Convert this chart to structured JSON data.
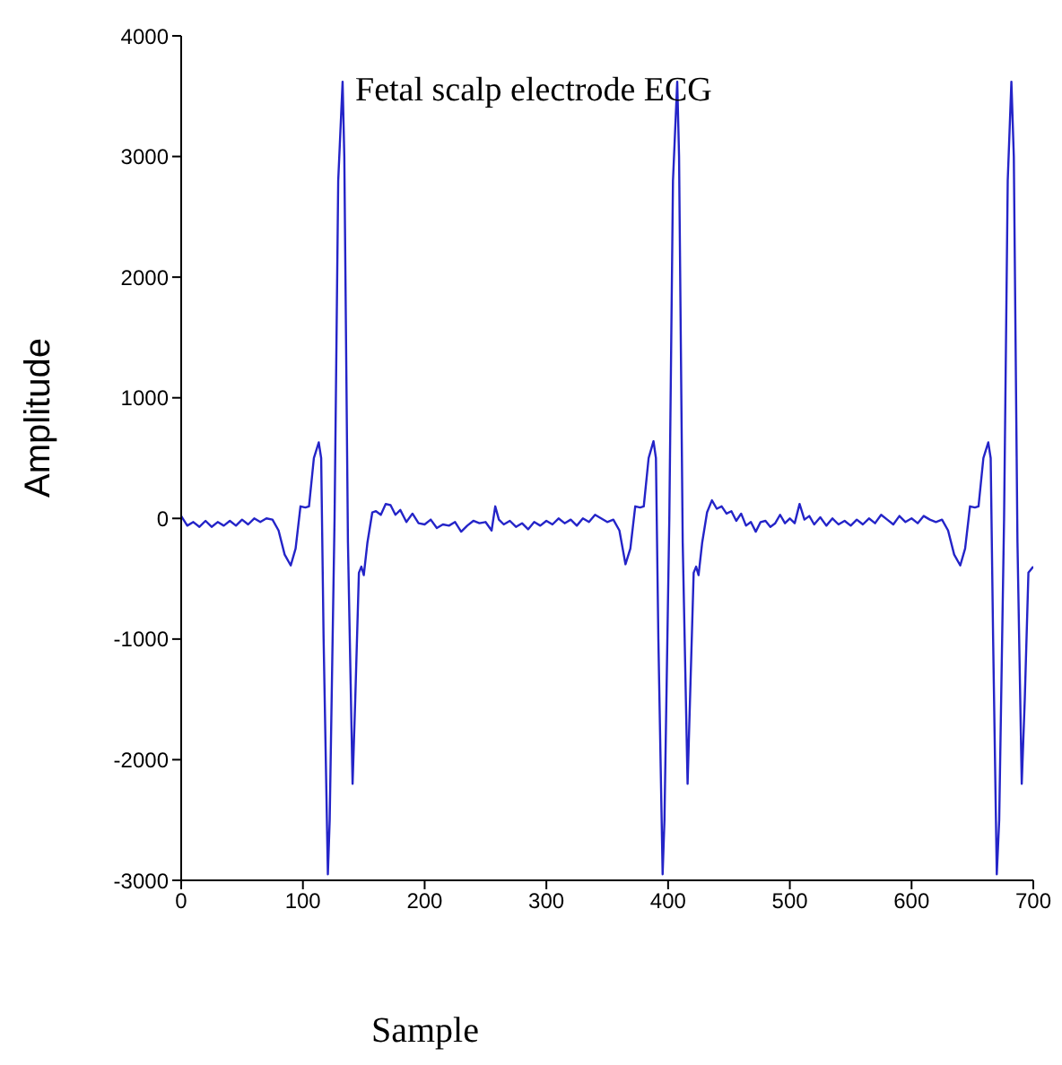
{
  "chart_data": {
    "type": "line",
    "title": "Fetal scalp electrode ECG",
    "xlabel": "Sample",
    "ylabel": "Amplitude",
    "xlim": [
      0,
      700
    ],
    "xticks": [
      0,
      100,
      200,
      300,
      400,
      500,
      600,
      700
    ],
    "ylim": [
      -3000,
      4000
    ],
    "yticks": [
      -3000,
      -2000,
      -1000,
      0,
      1000,
      2000,
      3000,
      4000
    ],
    "grid": false,
    "marker": "none",
    "line_style": "solid",
    "x": [
      0,
      5,
      10,
      15,
      20,
      25,
      30,
      35,
      40,
      45,
      50,
      55,
      60,
      65,
      70,
      75,
      80,
      85,
      90,
      94,
      98,
      102,
      105,
      109,
      113,
      115,
      117,
      120.5,
      122,
      126,
      129,
      132.6,
      134,
      137,
      140.8,
      143,
      146,
      148,
      150,
      153,
      157,
      160,
      164,
      168,
      172,
      176,
      180,
      185,
      190,
      195,
      200,
      205,
      210,
      215,
      220,
      225,
      230,
      235,
      240,
      245,
      250,
      255,
      258,
      261,
      265,
      270,
      275,
      280,
      285,
      290,
      295,
      300,
      305,
      310,
      315,
      320,
      325,
      330,
      335,
      340,
      345,
      350,
      355,
      360,
      365,
      369,
      373,
      377,
      380,
      384,
      388,
      390,
      392,
      395.5,
      397,
      401,
      404,
      407.5,
      409,
      412,
      416,
      418,
      421,
      423,
      425,
      428,
      432,
      436,
      440,
      444,
      448,
      452,
      456,
      460,
      464,
      468,
      472,
      476,
      480,
      484,
      488,
      492,
      496,
      500,
      504,
      508,
      512,
      516,
      520,
      525,
      530,
      535,
      540,
      545,
      550,
      555,
      560,
      565,
      570,
      575,
      580,
      585,
      590,
      595,
      600,
      605,
      610,
      615,
      620,
      625,
      630,
      635,
      640,
      644,
      648,
      652,
      655,
      659,
      663,
      665,
      667,
      670,
      672,
      676,
      679,
      682,
      684,
      687,
      690.5,
      693,
      696,
      700
    ],
    "series": [
      {
        "color": "#2424c8",
        "values": [
          20,
          -60,
          -30,
          -70,
          -20,
          -70,
          -30,
          -60,
          -20,
          -60,
          -10,
          -50,
          0,
          -30,
          0,
          -10,
          -100,
          -300,
          -390,
          -250,
          100,
          90,
          100,
          500,
          630,
          500,
          -1000,
          -2950,
          -2500,
          0,
          2800,
          3620,
          3000,
          -200,
          -2200,
          -1500,
          -450,
          -400,
          -470,
          -200,
          50,
          60,
          30,
          120,
          110,
          30,
          70,
          -30,
          40,
          -40,
          -50,
          -10,
          -80,
          -50,
          -60,
          -30,
          -110,
          -60,
          -20,
          -40,
          -30,
          -100,
          100,
          -10,
          -50,
          -20,
          -70,
          -40,
          -90,
          -30,
          -60,
          -20,
          -50,
          0,
          -40,
          -10,
          -60,
          0,
          -30,
          30,
          0,
          -30,
          -10,
          -100,
          -380,
          -250,
          100,
          90,
          100,
          500,
          640,
          500,
          -1000,
          -2950,
          -2500,
          0,
          2800,
          3620,
          3000,
          -200,
          -2200,
          -1500,
          -450,
          -400,
          -470,
          -200,
          50,
          150,
          80,
          100,
          40,
          60,
          -20,
          40,
          -60,
          -30,
          -110,
          -30,
          -20,
          -70,
          -40,
          30,
          -40,
          0,
          -40,
          120,
          -10,
          20,
          -50,
          10,
          -60,
          0,
          -50,
          -20,
          -60,
          -10,
          -50,
          0,
          -40,
          30,
          -10,
          -50,
          20,
          -30,
          0,
          -40,
          20,
          -10,
          -30,
          -10,
          -100,
          -300,
          -390,
          -250,
          100,
          90,
          100,
          500,
          630,
          500,
          -1000,
          -2950,
          -2500,
          0,
          2800,
          3620,
          3000,
          -200,
          -2200,
          -1500,
          -450,
          -400
        ]
      }
    ]
  }
}
